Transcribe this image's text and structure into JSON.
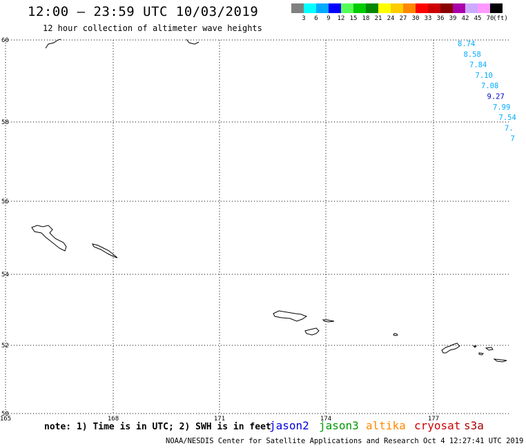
{
  "header": {
    "title": "12:00 – 23:59 UTC 10/03/2019",
    "subtitle": "12 hour collection of altimeter wave heights"
  },
  "scale": {
    "colors": [
      "#808080",
      "#00ffff",
      "#00aaff",
      "#0000ff",
      "#55ff55",
      "#00cc00",
      "#008800",
      "#ffff00",
      "#ffcc00",
      "#ff8800",
      "#ff0000",
      "#cc0000",
      "#880000",
      "#aa00aa",
      "#ccaaff",
      "#ff99ff",
      "#000000"
    ],
    "labels": [
      "3",
      "6",
      "9",
      "12",
      "15",
      "18",
      "21",
      "24",
      "27",
      "30",
      "33",
      "36",
      "39",
      "42",
      "45",
      "70",
      "(ft)"
    ]
  },
  "map": {
    "lat_labels": [
      "60",
      "58",
      "56",
      "54",
      "52",
      "50"
    ],
    "lon_labels": [
      "165",
      "168",
      "171",
      "174",
      "177"
    ],
    "wave_heights": [
      {
        "value": "8.74",
        "color": "#00aaff"
      },
      {
        "value": "8.58",
        "color": "#00aaff"
      },
      {
        "value": "7.84",
        "color": "#00aaff"
      },
      {
        "value": "7.10",
        "color": "#00aaff"
      },
      {
        "value": "7.08",
        "color": "#00aaff"
      },
      {
        "value": "9.27",
        "color": "#0000cc"
      },
      {
        "value": "7.99",
        "color": "#00aaff"
      },
      {
        "value": "7.54",
        "color": "#00aaff"
      },
      {
        "value": "7.",
        "color": "#00aaff"
      },
      {
        "value": "7",
        "color": "#00aaff"
      }
    ]
  },
  "footer": {
    "note": "note: 1) Time is in UTC; 2) SWH is in feet",
    "satellites": [
      {
        "name": "jason2",
        "color": "#0000dd"
      },
      {
        "name": "jason3",
        "color": "#009900"
      },
      {
        "name": "altika",
        "color": "#ff8800"
      },
      {
        "name": "cryosat",
        "color": "#cc0000"
      },
      {
        "name": "s3a",
        "color": "#aa0000"
      }
    ],
    "credit": "NOAA/NESDIS Center for Satellite Applications and Research   Oct  4 12:27:41 UTC 2019"
  }
}
